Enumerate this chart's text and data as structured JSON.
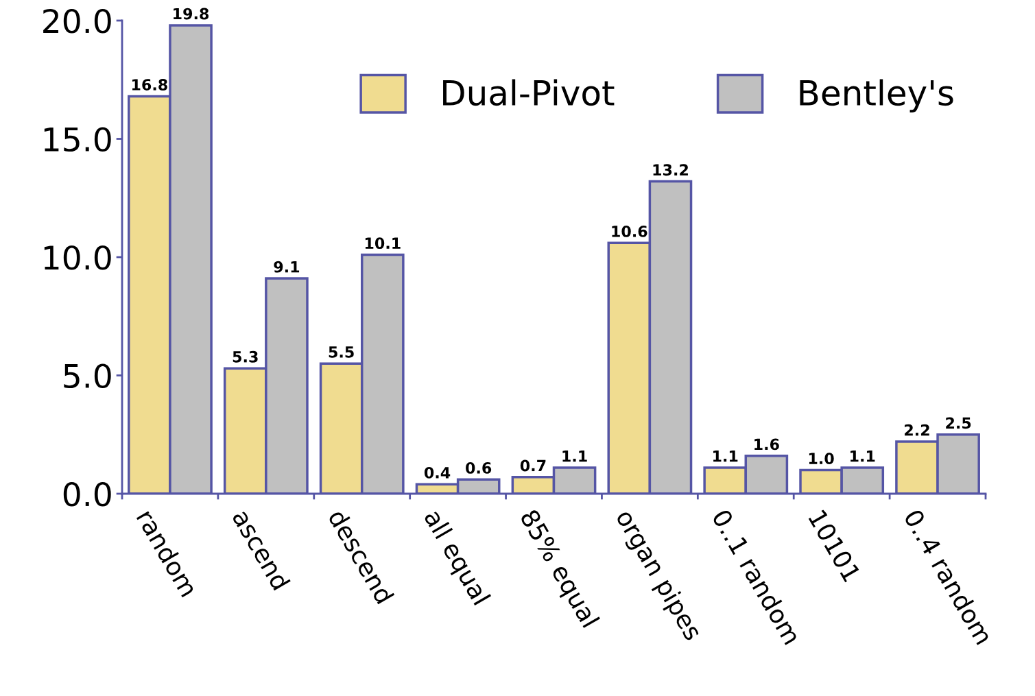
{
  "chart_data": {
    "type": "bar",
    "categories": [
      "random",
      "ascend",
      "descend",
      "all equal",
      "85% equal",
      "organ pipes",
      "0..1 random",
      "10101",
      "0..4 random"
    ],
    "series": [
      {
        "name": "Dual-Pivot",
        "color": "#f0dc90",
        "values": [
          16.8,
          5.3,
          5.5,
          0.4,
          0.7,
          10.6,
          1.1,
          1.0,
          2.2
        ],
        "value_labels": [
          "16.8",
          "5.3",
          "5.5",
          "0.4",
          "0.7",
          "10.6",
          "1.1",
          "1.0",
          "2.2"
        ]
      },
      {
        "name": "Bentley's",
        "color": "#c0c0c0",
        "values": [
          19.8,
          9.1,
          10.1,
          0.6,
          1.1,
          13.2,
          1.6,
          1.1,
          2.5
        ],
        "value_labels": [
          "19.8",
          "9.1",
          "10.1",
          "0.6",
          "1.1",
          "13.2",
          "1.6",
          "1.1",
          "2.5"
        ]
      }
    ],
    "ylim": [
      0,
      20
    ],
    "yticks": [
      {
        "value": 0,
        "label": "0.0"
      },
      {
        "value": 5,
        "label": "5.0"
      },
      {
        "value": 10,
        "label": "10.0"
      },
      {
        "value": 15,
        "label": "15.0"
      },
      {
        "value": 20,
        "label": "20.0"
      }
    ],
    "grid": false,
    "legend": "top right"
  }
}
